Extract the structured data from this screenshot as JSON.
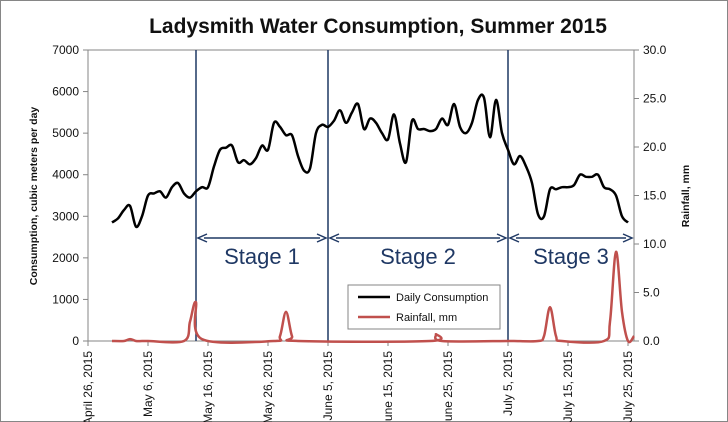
{
  "chart_data": {
    "type": "line",
    "title": "Ladysmith Water Consumption, Summer 2015",
    "ylabel": "Consumption, cubic meters per day",
    "y2label": "Rainfall, mm",
    "ylim": [
      0,
      7000
    ],
    "y2lim": [
      0,
      30
    ],
    "y_ticks": [
      "0",
      "1000",
      "2000",
      "3000",
      "4000",
      "5000",
      "6000",
      "7000"
    ],
    "y2_ticks": [
      "0.0",
      "5.0",
      "10.0",
      "15.0",
      "20.0",
      "25.0",
      "30.0"
    ],
    "x_ticks": [
      "April 26, 2015",
      "May 6, 2015",
      "May 16, 2015",
      "May 26, 2015",
      "June 5, 2015",
      "June 15, 2015",
      "June 25, 2015",
      "July 5, 2015",
      "July 15, 2015",
      "July 25, 2015"
    ],
    "xlim": [
      "2015-04-26",
      "2015-07-26"
    ],
    "grid": false,
    "legend_position": "bottom-center",
    "series": [
      {
        "name": "Daily Consumption",
        "axis": "left",
        "color": "#000000",
        "x": [
          "2015-04-30",
          "2015-05-01",
          "2015-05-02",
          "2015-05-03",
          "2015-05-04",
          "2015-05-05",
          "2015-05-06",
          "2015-05-07",
          "2015-05-08",
          "2015-05-09",
          "2015-05-10",
          "2015-05-11",
          "2015-05-12",
          "2015-05-13",
          "2015-05-14",
          "2015-05-15",
          "2015-05-16",
          "2015-05-17",
          "2015-05-18",
          "2015-05-19",
          "2015-05-20",
          "2015-05-21",
          "2015-05-22",
          "2015-05-23",
          "2015-05-24",
          "2015-05-25",
          "2015-05-26",
          "2015-05-27",
          "2015-05-28",
          "2015-05-29",
          "2015-05-30",
          "2015-05-31",
          "2015-06-01",
          "2015-06-02",
          "2015-06-03",
          "2015-06-04",
          "2015-06-05",
          "2015-06-06",
          "2015-06-07",
          "2015-06-08",
          "2015-06-09",
          "2015-06-10",
          "2015-06-11",
          "2015-06-12",
          "2015-06-13",
          "2015-06-14",
          "2015-06-15",
          "2015-06-16",
          "2015-06-17",
          "2015-06-18",
          "2015-06-19",
          "2015-06-20",
          "2015-06-21",
          "2015-06-22",
          "2015-06-23",
          "2015-06-24",
          "2015-06-25",
          "2015-06-26",
          "2015-06-27",
          "2015-06-28",
          "2015-06-29",
          "2015-06-30",
          "2015-07-01",
          "2015-07-02",
          "2015-07-03",
          "2015-07-04",
          "2015-07-05",
          "2015-07-06",
          "2015-07-07",
          "2015-07-08",
          "2015-07-09",
          "2015-07-10",
          "2015-07-11",
          "2015-07-12",
          "2015-07-13",
          "2015-07-14",
          "2015-07-15",
          "2015-07-16",
          "2015-07-17",
          "2015-07-18",
          "2015-07-19",
          "2015-07-20",
          "2015-07-21",
          "2015-07-22",
          "2015-07-23",
          "2015-07-24",
          "2015-07-25"
        ],
        "values": [
          2850,
          2950,
          3150,
          3250,
          2750,
          3000,
          3500,
          3550,
          3600,
          3450,
          3700,
          3800,
          3550,
          3450,
          3600,
          3700,
          3700,
          4200,
          4600,
          4650,
          4700,
          4300,
          4350,
          4250,
          4400,
          4700,
          4600,
          5250,
          5150,
          4950,
          4950,
          4450,
          4100,
          4150,
          5000,
          5200,
          5150,
          5300,
          5550,
          5250,
          5500,
          5700,
          5100,
          5350,
          5250,
          5000,
          4850,
          5450,
          4750,
          4300,
          5300,
          5100,
          5100,
          5050,
          5100,
          5350,
          5200,
          5700,
          5150,
          5000,
          5250,
          5800,
          5850,
          4900,
          5800,
          5000,
          4600,
          4250,
          4450,
          4200,
          3800,
          3050,
          3000,
          3650,
          3650,
          3700,
          3700,
          3750,
          4000,
          3950,
          3950,
          4000,
          3700,
          3650,
          3500,
          3000,
          2850
        ],
        "values_end": 2850
      },
      {
        "name": "Rainfall, mm",
        "axis": "right",
        "color": "#c0504d",
        "x": [
          "2015-04-30",
          "2015-05-02",
          "2015-05-03",
          "2015-05-04",
          "2015-05-05",
          "2015-05-06",
          "2015-05-12",
          "2015-05-13",
          "2015-05-14",
          "2015-05-15",
          "2015-05-27",
          "2015-05-28",
          "2015-05-29",
          "2015-05-30",
          "2015-05-31",
          "2015-06-22",
          "2015-06-23",
          "2015-06-24",
          "2015-07-05",
          "2015-07-06",
          "2015-07-10",
          "2015-07-11",
          "2015-07-12",
          "2015-07-13",
          "2015-07-14",
          "2015-07-21",
          "2015-07-22",
          "2015-07-23",
          "2015-07-24",
          "2015-07-25",
          "2015-07-26"
        ],
        "values": [
          0,
          0,
          0.2,
          0,
          0,
          0,
          0,
          2.0,
          4.0,
          0.2,
          0,
          0.5,
          3.0,
          0.5,
          0,
          0,
          0.7,
          0,
          0,
          0,
          0,
          0.5,
          3.5,
          0.5,
          0,
          0,
          2.0,
          9.2,
          3.0,
          0,
          0.5
        ]
      }
    ],
    "annotations": [
      {
        "label": "Stage 1",
        "from": "2015-05-14",
        "to": "2015-06-05"
      },
      {
        "label": "Stage 2",
        "from": "2015-06-05",
        "to": "2015-07-05"
      },
      {
        "label": "Stage 3",
        "from": "2015-07-05",
        "to": "2015-07-26"
      }
    ],
    "stage_boundaries": [
      "2015-05-14",
      "2015-06-05",
      "2015-07-05"
    ],
    "colors": {
      "consumption": "#000000",
      "rainfall": "#c0504d",
      "stage_lines": "#1f3864",
      "stage_text": "#1f3864",
      "axis": "#868686",
      "frame": "#868686"
    }
  }
}
